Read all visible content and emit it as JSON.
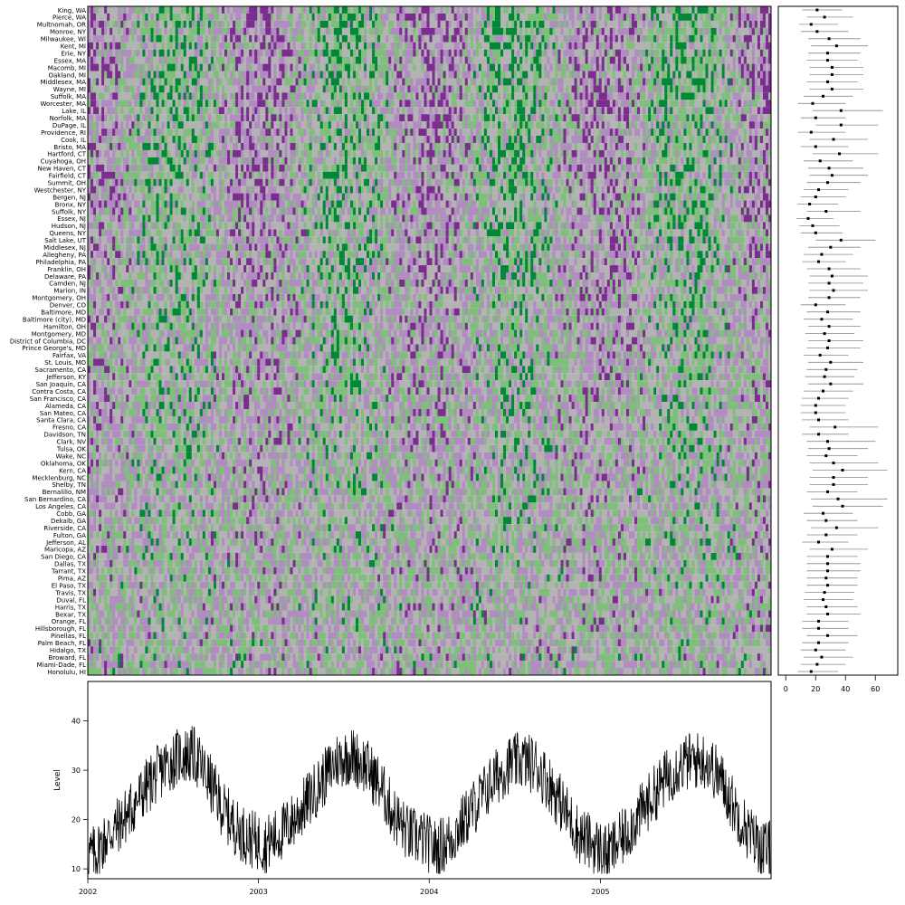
{
  "chart_data": [
    {
      "type": "heatmap",
      "title": "",
      "xlabel": "",
      "ylabel": "",
      "x_start": "2002-01-01",
      "x_end": "2005-12-31",
      "colors": {
        "low": "#7b2d8e",
        "mid_low": "#b08cc0",
        "mid": "#b3b3b3",
        "mid_high": "#7fbf7b",
        "high": "#008837",
        "missing": "#ffffff"
      },
      "rows": [
        "King, WA",
        "Pierce, WA",
        "Multnomah, OR",
        "Monroe, NY",
        "Milwaukee, WI",
        "Kent, MI",
        "Erie, NY",
        "Essex, MA",
        "Macomb, MI",
        "Oakland, MI",
        "Middlesex, MA",
        "Wayne, MI",
        "Suffolk, MA",
        "Worcester, MA",
        "Lake, IL",
        "Norfolk, MA",
        "DuPage, IL",
        "Providence, RI",
        "Cook, IL",
        "Bristo, MA",
        "Hartford, CT",
        "Cuyahoga, OH",
        "New Haven, CT",
        "Fairfield, CT",
        "Summit, OH",
        "Westchester, NY",
        "Bergen, NJ",
        "Bronx, NY",
        "Suffolk, NY",
        "Essex, NJ",
        "Hudson, NJ",
        "Queens, NY",
        "Salt Lake, UT",
        "Middlesex, NJ",
        "Allegheny, PA",
        "Philadelphia, PA",
        "Franklin, OH",
        "Delaware, PA",
        "Camden, NJ",
        "Marion, IN",
        "Montgomery, OH",
        "Denver, CO",
        "Baltimore, MD",
        "Baltimore (city), MD",
        "Hamilton, OH",
        "Montgomery, MD",
        "District of Columbia, DC",
        "Prince George's, MD",
        "Fairfax, VA",
        "St. Louis, MO",
        "Sacramento, CA",
        "Jefferson, KY",
        "San Joaquin, CA",
        "Contra Costa, CA",
        "San Francisco, CA",
        "Alameda, CA",
        "San Mateo, CA",
        "Santa Clara, CA",
        "Fresno, CA",
        "Davidson, TN",
        "Clark, NV",
        "Tulsa, OK",
        "Wake, NC",
        "Oklahoma, OK",
        "Kern, CA",
        "Mecklenburg, NC",
        "Shelby, TN",
        "Bernalillo, NM",
        "San Bernardino, CA",
        "Los Angeles, CA",
        "Cobb, GA",
        "Dekalb, GA",
        "Riverside, CA",
        "Fulton, GA",
        "Jefferson, AL",
        "Maricopa, AZ",
        "San Diego, CA",
        "Dallas, TX",
        "Tarrant, TX",
        "Pima, AZ",
        "El Paso, TX",
        "Travis, TX",
        "Duval, FL",
        "Harris, TX",
        "Bexar, TX",
        "Orange, FL",
        "Hillsborough, FL",
        "Pinellas, FL",
        "Palm Beach, FL",
        "Hidalgo, TX",
        "Broward, FL",
        "Miami-Dade, FL",
        "Honolulu, HI"
      ]
    },
    {
      "type": "scatter",
      "subtype": "dot-and-interval",
      "xlim": [
        -5,
        75
      ],
      "x_ticks": [
        "0",
        "20",
        "40",
        "60"
      ],
      "x_tick_values": [
        0,
        20,
        40,
        60
      ],
      "rows": "same as heatmap rows",
      "points": [
        {
          "mean": 21,
          "lo": 11,
          "hi": 38
        },
        {
          "mean": 26,
          "lo": 14,
          "hi": 45
        },
        {
          "mean": 17,
          "lo": 9,
          "hi": 35
        },
        {
          "mean": 21,
          "lo": 10,
          "hi": 42
        },
        {
          "mean": 29,
          "lo": 15,
          "hi": 50
        },
        {
          "mean": 34,
          "lo": 17,
          "hi": 55
        },
        {
          "mean": 28,
          "lo": 15,
          "hi": 50
        },
        {
          "mean": 28,
          "lo": 14,
          "hi": 48
        },
        {
          "mean": 31,
          "lo": 16,
          "hi": 52
        },
        {
          "mean": 31,
          "lo": 16,
          "hi": 52
        },
        {
          "mean": 28,
          "lo": 14,
          "hi": 48
        },
        {
          "mean": 31,
          "lo": 16,
          "hi": 52
        },
        {
          "mean": 25,
          "lo": 12,
          "hi": 45
        },
        {
          "mean": 18,
          "lo": 8,
          "hi": 40
        },
        {
          "mean": 37,
          "lo": 18,
          "hi": 65
        },
        {
          "mean": 20,
          "lo": 10,
          "hi": 40
        },
        {
          "mean": 37,
          "lo": 20,
          "hi": 62
        },
        {
          "mean": 17,
          "lo": 8,
          "hi": 40
        },
        {
          "mean": 32,
          "lo": 16,
          "hi": 55
        },
        {
          "mean": 20,
          "lo": 10,
          "hi": 42
        },
        {
          "mean": 36,
          "lo": 18,
          "hi": 62
        },
        {
          "mean": 23,
          "lo": 12,
          "hi": 45
        },
        {
          "mean": 29,
          "lo": 15,
          "hi": 52
        },
        {
          "mean": 31,
          "lo": 16,
          "hi": 55
        },
        {
          "mean": 28,
          "lo": 14,
          "hi": 50
        },
        {
          "mean": 22,
          "lo": 12,
          "hi": 42
        },
        {
          "mean": 20,
          "lo": 10,
          "hi": 40
        },
        {
          "mean": 16,
          "lo": 8,
          "hi": 35
        },
        {
          "mean": 27,
          "lo": 14,
          "hi": 50
        },
        {
          "mean": 15,
          "lo": 7,
          "hi": 32
        },
        {
          "mean": 18,
          "lo": 9,
          "hi": 36
        },
        {
          "mean": 20,
          "lo": 10,
          "hi": 38
        },
        {
          "mean": 37,
          "lo": 20,
          "hi": 60
        },
        {
          "mean": 30,
          "lo": 15,
          "hi": 50
        },
        {
          "mean": 24,
          "lo": 12,
          "hi": 45
        },
        {
          "mean": 22,
          "lo": 11,
          "hi": 40
        },
        {
          "mean": 29,
          "lo": 14,
          "hi": 50
        },
        {
          "mean": 31,
          "lo": 16,
          "hi": 55
        },
        {
          "mean": 29,
          "lo": 15,
          "hi": 52
        },
        {
          "mean": 32,
          "lo": 16,
          "hi": 55
        },
        {
          "mean": 29,
          "lo": 15,
          "hi": 50
        },
        {
          "mean": 20,
          "lo": 10,
          "hi": 40
        },
        {
          "mean": 28,
          "lo": 14,
          "hi": 50
        },
        {
          "mean": 24,
          "lo": 12,
          "hi": 45
        },
        {
          "mean": 29,
          "lo": 15,
          "hi": 50
        },
        {
          "mean": 26,
          "lo": 13,
          "hi": 46
        },
        {
          "mean": 29,
          "lo": 15,
          "hi": 52
        },
        {
          "mean": 28,
          "lo": 14,
          "hi": 50
        },
        {
          "mean": 23,
          "lo": 12,
          "hi": 42
        },
        {
          "mean": 30,
          "lo": 15,
          "hi": 52
        },
        {
          "mean": 27,
          "lo": 14,
          "hi": 48
        },
        {
          "mean": 26,
          "lo": 13,
          "hi": 46
        },
        {
          "mean": 30,
          "lo": 15,
          "hi": 52
        },
        {
          "mean": 25,
          "lo": 12,
          "hi": 45
        },
        {
          "mean": 22,
          "lo": 11,
          "hi": 42
        },
        {
          "mean": 20,
          "lo": 10,
          "hi": 40
        },
        {
          "mean": 20,
          "lo": 10,
          "hi": 40
        },
        {
          "mean": 22,
          "lo": 11,
          "hi": 42
        },
        {
          "mean": 33,
          "lo": 16,
          "hi": 62
        },
        {
          "mean": 22,
          "lo": 11,
          "hi": 42
        },
        {
          "mean": 28,
          "lo": 14,
          "hi": 60
        },
        {
          "mean": 29,
          "lo": 15,
          "hi": 55
        },
        {
          "mean": 27,
          "lo": 14,
          "hi": 48
        },
        {
          "mean": 32,
          "lo": 16,
          "hi": 62
        },
        {
          "mean": 38,
          "lo": 18,
          "hi": 68
        },
        {
          "mean": 32,
          "lo": 16,
          "hi": 55
        },
        {
          "mean": 32,
          "lo": 16,
          "hi": 55
        },
        {
          "mean": 28,
          "lo": 14,
          "hi": 48
        },
        {
          "mean": 35,
          "lo": 17,
          "hi": 68
        },
        {
          "mean": 38,
          "lo": 18,
          "hi": 65
        },
        {
          "mean": 25,
          "lo": 12,
          "hi": 45
        },
        {
          "mean": 27,
          "lo": 14,
          "hi": 48
        },
        {
          "mean": 34,
          "lo": 17,
          "hi": 62
        },
        {
          "mean": 27,
          "lo": 14,
          "hi": 48
        },
        {
          "mean": 22,
          "lo": 11,
          "hi": 42
        },
        {
          "mean": 31,
          "lo": 16,
          "hi": 55
        },
        {
          "mean": 28,
          "lo": 14,
          "hi": 48
        },
        {
          "mean": 28,
          "lo": 14,
          "hi": 50
        },
        {
          "mean": 28,
          "lo": 14,
          "hi": 50
        },
        {
          "mean": 27,
          "lo": 14,
          "hi": 48
        },
        {
          "mean": 28,
          "lo": 14,
          "hi": 48
        },
        {
          "mean": 26,
          "lo": 13,
          "hi": 46
        },
        {
          "mean": 25,
          "lo": 12,
          "hi": 45
        },
        {
          "mean": 27,
          "lo": 14,
          "hi": 48
        },
        {
          "mean": 28,
          "lo": 14,
          "hi": 50
        },
        {
          "mean": 22,
          "lo": 11,
          "hi": 42
        },
        {
          "mean": 22,
          "lo": 11,
          "hi": 42
        },
        {
          "mean": 28,
          "lo": 14,
          "hi": 48
        },
        {
          "mean": 22,
          "lo": 11,
          "hi": 42
        },
        {
          "mean": 20,
          "lo": 10,
          "hi": 40
        },
        {
          "mean": 24,
          "lo": 12,
          "hi": 45
        },
        {
          "mean": 21,
          "lo": 10,
          "hi": 40
        },
        {
          "mean": 17,
          "lo": 8,
          "hi": 35
        }
      ]
    },
    {
      "type": "line",
      "xlabel": "",
      "ylabel": "Level",
      "x_ticks": [
        "2002",
        "2003",
        "2004",
        "2005"
      ],
      "x_start": "2002-01-01",
      "x_end": "2005-12-31",
      "y_ticks": [
        "10",
        "20",
        "30",
        "40"
      ],
      "y_tick_values": [
        10,
        20,
        30,
        40
      ],
      "ylim": [
        8,
        48
      ],
      "grid": false,
      "note": "daily values, seasonal cycle: troughs near 10-15 in winter, peaks near 30-47 in summer",
      "series": [
        {
          "frequency": "daily",
          "values_monthly_mean": [
            13,
            17,
            20,
            24,
            28,
            31,
            33,
            33,
            28,
            22,
            18,
            16,
            15,
            17,
            20,
            24,
            28,
            32,
            33,
            31,
            27,
            21,
            17,
            16,
            14,
            16,
            20,
            24,
            28,
            31,
            32,
            31,
            27,
            22,
            17,
            15,
            13,
            16,
            20,
            24,
            28,
            31,
            32,
            32,
            28,
            22,
            17,
            14
          ]
        }
      ]
    }
  ]
}
